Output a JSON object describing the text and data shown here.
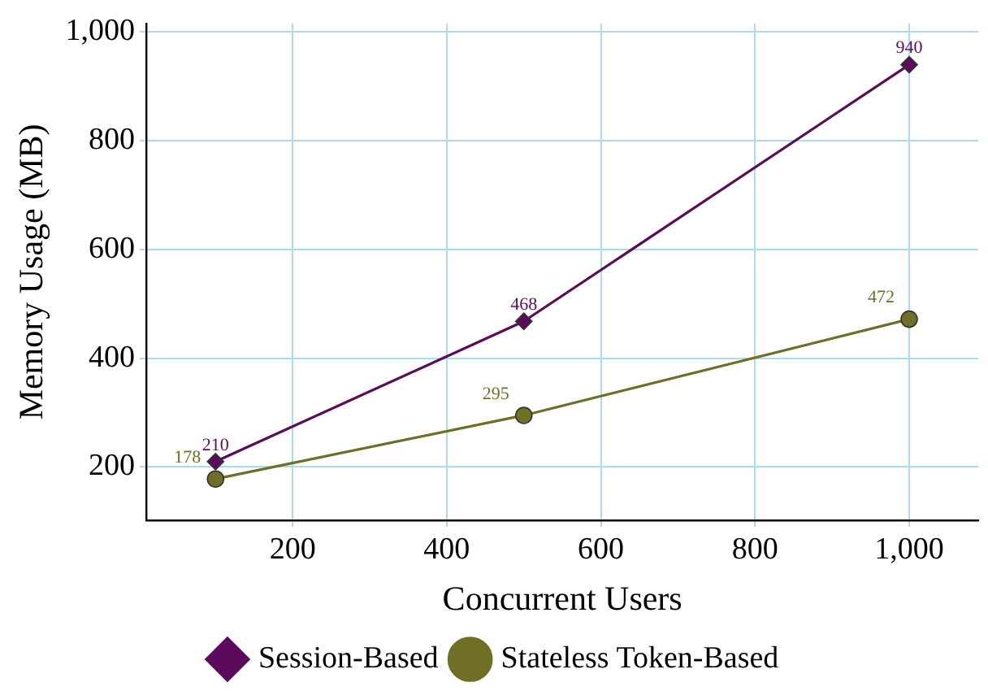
{
  "chart_data": {
    "type": "line",
    "xlabel": "Concurrent Users",
    "ylabel": "Memory Usage (MB)",
    "x": [
      100,
      500,
      1000
    ],
    "series": [
      {
        "name": "Session-Based",
        "color": "#5c0a5c",
        "values": [
          210,
          468,
          940
        ],
        "marker": "diamond"
      },
      {
        "name": "Stateless Token-Based",
        "color": "#6f6f26",
        "values": [
          178,
          295,
          472
        ],
        "marker": "circle"
      }
    ],
    "xlim": [
      10,
      1090
    ],
    "xticks": [
      {
        "value": 200,
        "label": "200"
      },
      {
        "value": 400,
        "label": "400"
      },
      {
        "value": 600,
        "label": "600"
      },
      {
        "value": 800,
        "label": "800"
      },
      {
        "value": 1000,
        "label": "1,000"
      }
    ],
    "ylim": [
      102,
      1016
    ],
    "yticks": [
      {
        "value": 200,
        "label": "200"
      },
      {
        "value": 400,
        "label": "400"
      },
      {
        "value": 600,
        "label": "600"
      },
      {
        "value": 800,
        "label": "800"
      },
      {
        "value": 1000,
        "label": "1,000"
      }
    ],
    "grid": true,
    "legend": "bottom",
    "data_labels": true,
    "line_style": "solid"
  }
}
